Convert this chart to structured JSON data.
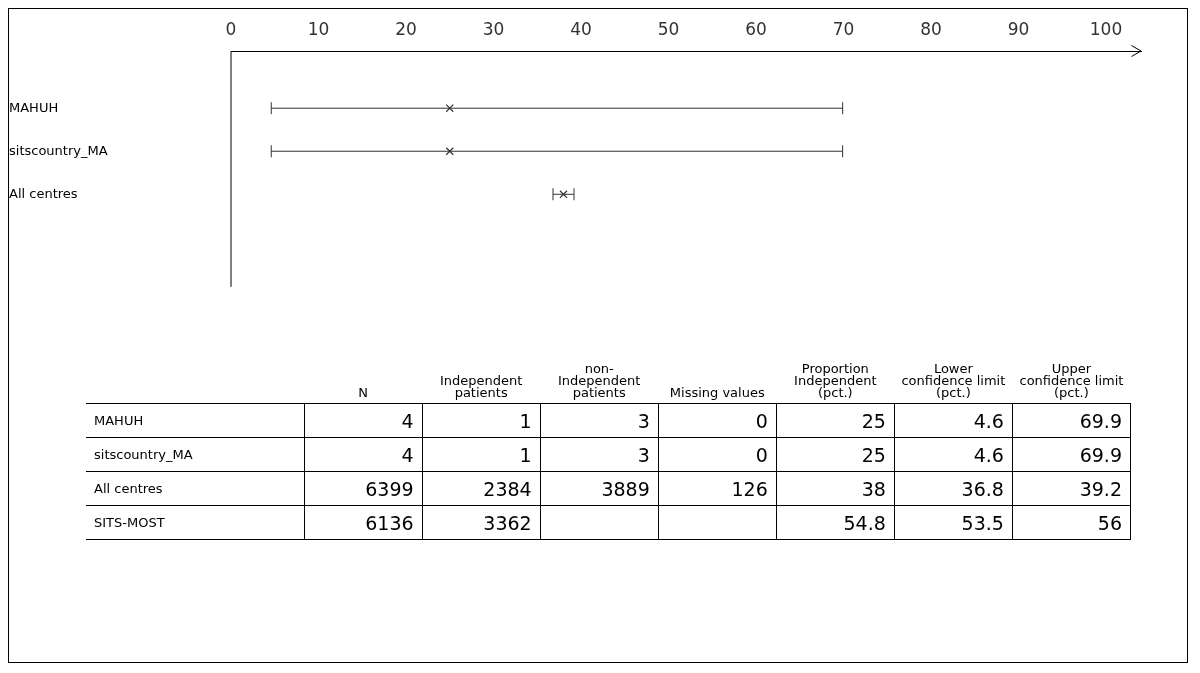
{
  "chart_data": [
    {
      "type": "scatter",
      "orientation": "horizontal",
      "categories": [
        "MAHUH",
        "sitscountry_MA",
        "All centres"
      ],
      "values": [
        25,
        25,
        38
      ],
      "errors": [
        [
          4.6,
          69.9
        ],
        [
          4.6,
          69.9
        ],
        [
          36.8,
          39.2
        ]
      ],
      "color": "#333333",
      "marker": "cross",
      "grid": false,
      "legend": false,
      "xlim": [
        0,
        104
      ],
      "xticks": [
        0,
        10,
        20,
        30,
        40,
        50,
        60,
        70,
        80,
        90,
        100
      ]
    },
    {
      "type": "heatmap",
      "categories": [
        "N",
        "Independent patients",
        "non-Independent patients",
        "Missing values",
        "Proportion Independent (pct.)",
        "Lower confidence limit (pct.)",
        "Upper confidence limit (pct.)"
      ],
      "y_categories": [
        "MAHUH",
        "sitscountry_MA",
        "All centres",
        "SITS-MOST"
      ],
      "data_labels": true,
      "cells": [
        [
          4,
          1,
          3,
          0,
          25,
          4.6,
          69.9
        ],
        [
          4,
          1,
          3,
          0,
          25,
          4.6,
          69.9
        ],
        [
          6399,
          2384,
          3889,
          126,
          38,
          36.8,
          39.2
        ],
        [
          6136,
          3362,
          null,
          null,
          54.8,
          53.5,
          56
        ]
      ]
    }
  ]
}
